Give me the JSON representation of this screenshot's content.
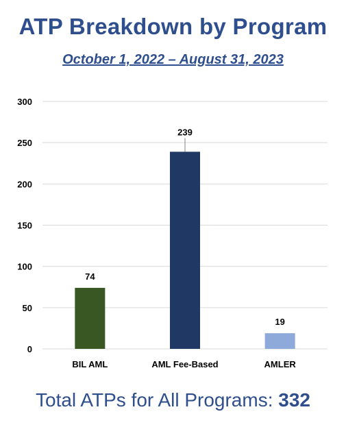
{
  "title": "ATP Breakdown by Program",
  "subtitle": "October 1, 2022 – August 31, 2023",
  "footer": {
    "label": "Total ATPs for All Programs: ",
    "value": "332"
  },
  "colors": {
    "title": "#2f4e8e",
    "grid": "#d9d9d9",
    "axis_text": "#000000"
  },
  "chart_data": {
    "type": "bar",
    "categories": [
      "BIL AML",
      "AML Fee-Based",
      "AMLER"
    ],
    "values": [
      74,
      239,
      19
    ],
    "bar_colors": [
      "#385723",
      "#1f3864",
      "#8eaadb"
    ],
    "data_labels": [
      "74",
      "239",
      "19"
    ],
    "ylim": [
      0,
      300
    ],
    "yticks": [
      0,
      50,
      100,
      150,
      200,
      250,
      300
    ],
    "grid": true,
    "legend": "none",
    "xlabel": "",
    "ylabel": ""
  }
}
